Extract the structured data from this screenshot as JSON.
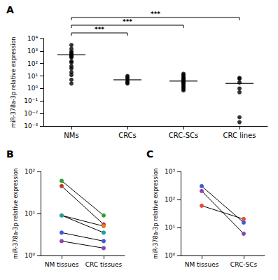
{
  "chart_data": [
    {
      "type": "scatter",
      "title": "A",
      "categories": [
        "NMs",
        "CRCs",
        "CRC-SCs",
        "CRC lines"
      ],
      "values": [
        [
          3000,
          1500,
          900,
          700,
          550,
          500,
          450,
          400,
          350,
          300,
          150,
          120,
          60,
          40,
          20,
          12,
          5,
          2.5
        ],
        [
          10,
          8,
          6,
          4,
          3,
          2.5
        ],
        [
          15,
          12,
          9,
          7,
          6,
          5,
          4,
          3.5,
          3,
          2.5,
          2,
          1.5,
          1.2,
          0.9,
          0.7
        ],
        [
          7,
          6,
          3,
          1,
          0.5,
          0.005,
          0.002
        ]
      ],
      "center_values": [
        500,
        5,
        4,
        2.5
      ],
      "color": "#000000",
      "marker": "circle",
      "ylabel": "miR-378a-3p relative expression",
      "log": "y",
      "ylim": [
        0.001,
        10000
      ],
      "yticks": [
        {
          "value": 0.001,
          "label": "10⁻³"
        },
        {
          "value": 0.01,
          "label": "10⁻²"
        },
        {
          "value": 0.1,
          "label": "10⁻¹"
        },
        {
          "value": 1,
          "label": "10⁰"
        },
        {
          "value": 10,
          "label": "10¹"
        },
        {
          "value": 100,
          "label": "10²"
        },
        {
          "value": 1000,
          "label": "10³"
        },
        {
          "value": 10000,
          "label": "10⁴"
        }
      ],
      "annotations": [
        {
          "from": "NMs",
          "to": "CRCs",
          "text": "***"
        },
        {
          "from": "NMs",
          "to": "CRC-SCs",
          "text": "***"
        },
        {
          "from": "NMs",
          "to": "CRC lines",
          "text": "***"
        }
      ]
    },
    {
      "type": "line",
      "title": "B",
      "categories": [
        "NM tissues",
        "CRC tissues"
      ],
      "series": [
        {
          "color": "#2ca02c",
          "values": [
            60,
            9
          ]
        },
        {
          "color": "#c0392b",
          "values": [
            45,
            5.5
          ]
        },
        {
          "color": "#e67e22",
          "values": [
            9,
            5
          ]
        },
        {
          "color": "#17a2a2",
          "values": [
            9,
            3.5
          ]
        },
        {
          "color": "#3b5bdb",
          "values": [
            3.5,
            2.2
          ]
        },
        {
          "color": "#8e44ad",
          "values": [
            2.2,
            1.5
          ]
        }
      ],
      "marker": "circle",
      "ylabel": "miR-378a-3p relative expression",
      "log": "y",
      "ylim": [
        1,
        100
      ],
      "yticks": [
        {
          "value": 1,
          "label": "10⁰"
        },
        {
          "value": 10,
          "label": "10¹"
        },
        {
          "value": 100,
          "label": "10²"
        }
      ]
    },
    {
      "type": "line",
      "title": "C",
      "categories": [
        "NM tissues",
        "CRC-SCs"
      ],
      "series": [
        {
          "color": "#3b5bdb",
          "values": [
            300,
            15
          ]
        },
        {
          "color": "#8e44ad",
          "values": [
            200,
            6
          ]
        },
        {
          "color": "#e74c3c",
          "values": [
            60,
            20
          ]
        }
      ],
      "marker": "circle",
      "ylabel": "miR-378a-3p relative expression",
      "log": "y",
      "ylim": [
        1,
        1000
      ],
      "yticks": [
        {
          "value": 1,
          "label": "10⁰"
        },
        {
          "value": 10,
          "label": "10¹"
        },
        {
          "value": 100,
          "label": "10²"
        },
        {
          "value": 1000,
          "label": "10³"
        }
      ]
    }
  ]
}
